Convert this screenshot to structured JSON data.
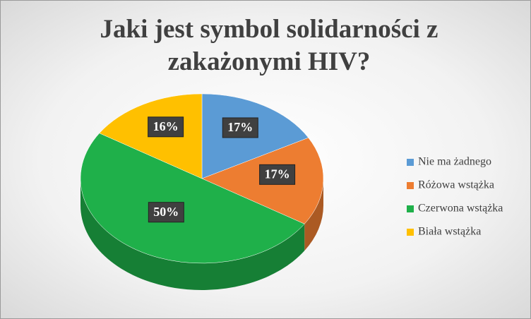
{
  "chart_data": {
    "type": "pie",
    "title": "Jaki jest symbol solidarności z zakażonymi  HIV?",
    "categories": [
      "Nie ma żadnego",
      "Różowa wstążka",
      "Czerwona wstążka",
      "Biała wstążka"
    ],
    "values": [
      17,
      17,
      50,
      16
    ],
    "value_labels": [
      "17%",
      "17%",
      "50%",
      "16%"
    ],
    "colors": [
      "#5b9bd5",
      "#ed7d31",
      "#1fb04a",
      "#ffc000"
    ],
    "legend": "right"
  }
}
